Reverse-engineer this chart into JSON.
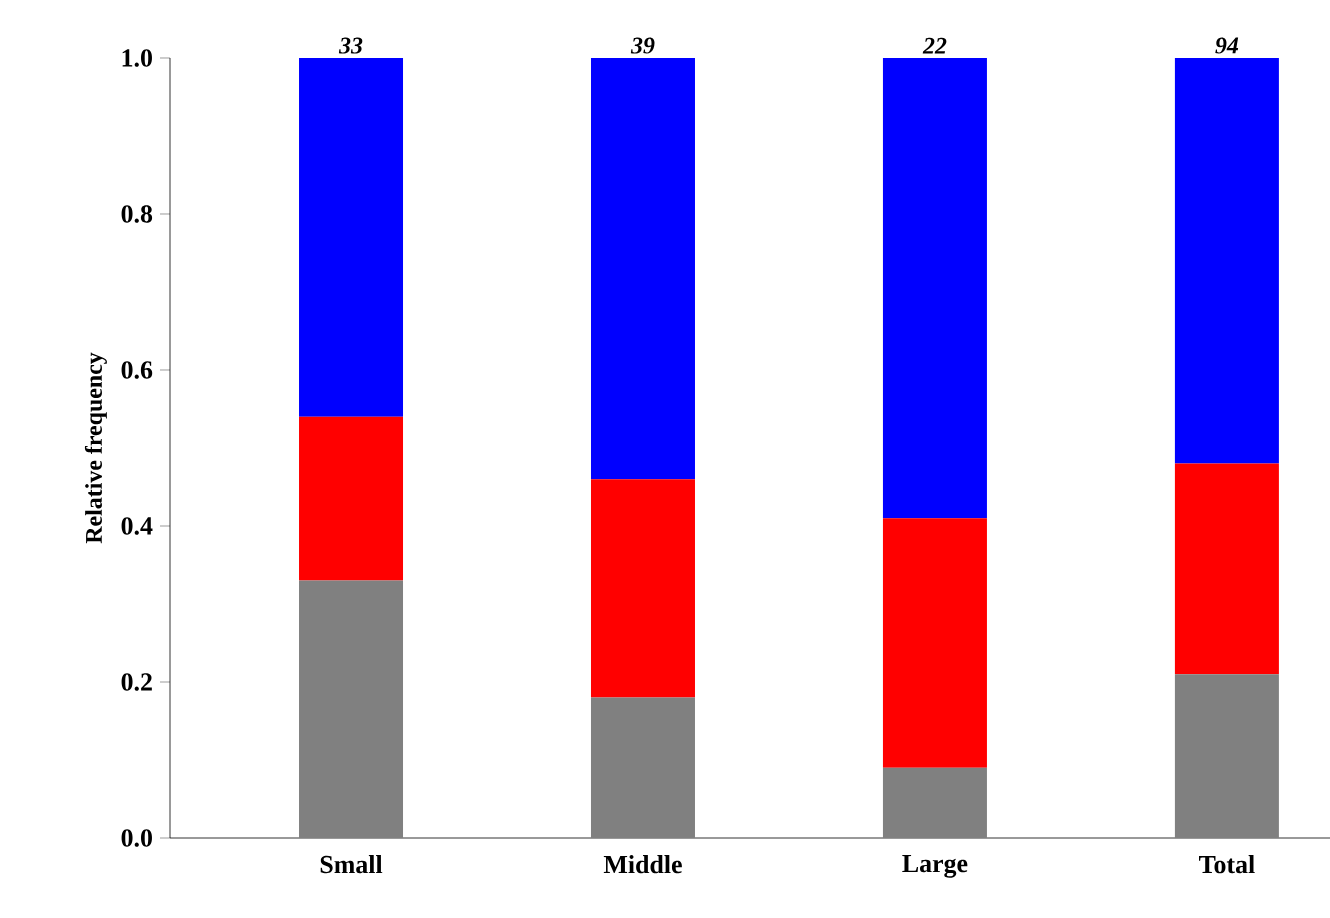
{
  "chart_data": {
    "type": "bar",
    "stacked": true,
    "ylabel": "Relative frequency",
    "categories": [
      "Small",
      "Middle",
      "Large",
      "Total"
    ],
    "series": [
      {
        "color": "#808080",
        "values": [
          0.33,
          0.18,
          0.09,
          0.21
        ]
      },
      {
        "color": "#ff0000",
        "values": [
          0.21,
          0.28,
          0.32,
          0.27
        ]
      },
      {
        "color": "#0000ff",
        "values": [
          0.46,
          0.54,
          0.59,
          0.52
        ]
      }
    ],
    "annotations": [
      {
        "text": "33",
        "x": "Small",
        "y": 1
      },
      {
        "text": "39",
        "x": "Middle",
        "y": 1
      },
      {
        "text": "22",
        "x": "Large",
        "y": 1
      },
      {
        "text": "94",
        "x": "Total",
        "y": 1
      }
    ],
    "ylim": [
      0,
      1
    ],
    "yticks": [
      {
        "value": 0,
        "label": "0.0"
      },
      {
        "value": 0.2,
        "label": "0.2"
      },
      {
        "value": 0.4,
        "label": "0.4"
      },
      {
        "value": 0.6,
        "label": "0.6"
      },
      {
        "value": 0.8,
        "label": "0.8"
      },
      {
        "value": 1,
        "label": "1.0"
      }
    ],
    "grid": false
  }
}
